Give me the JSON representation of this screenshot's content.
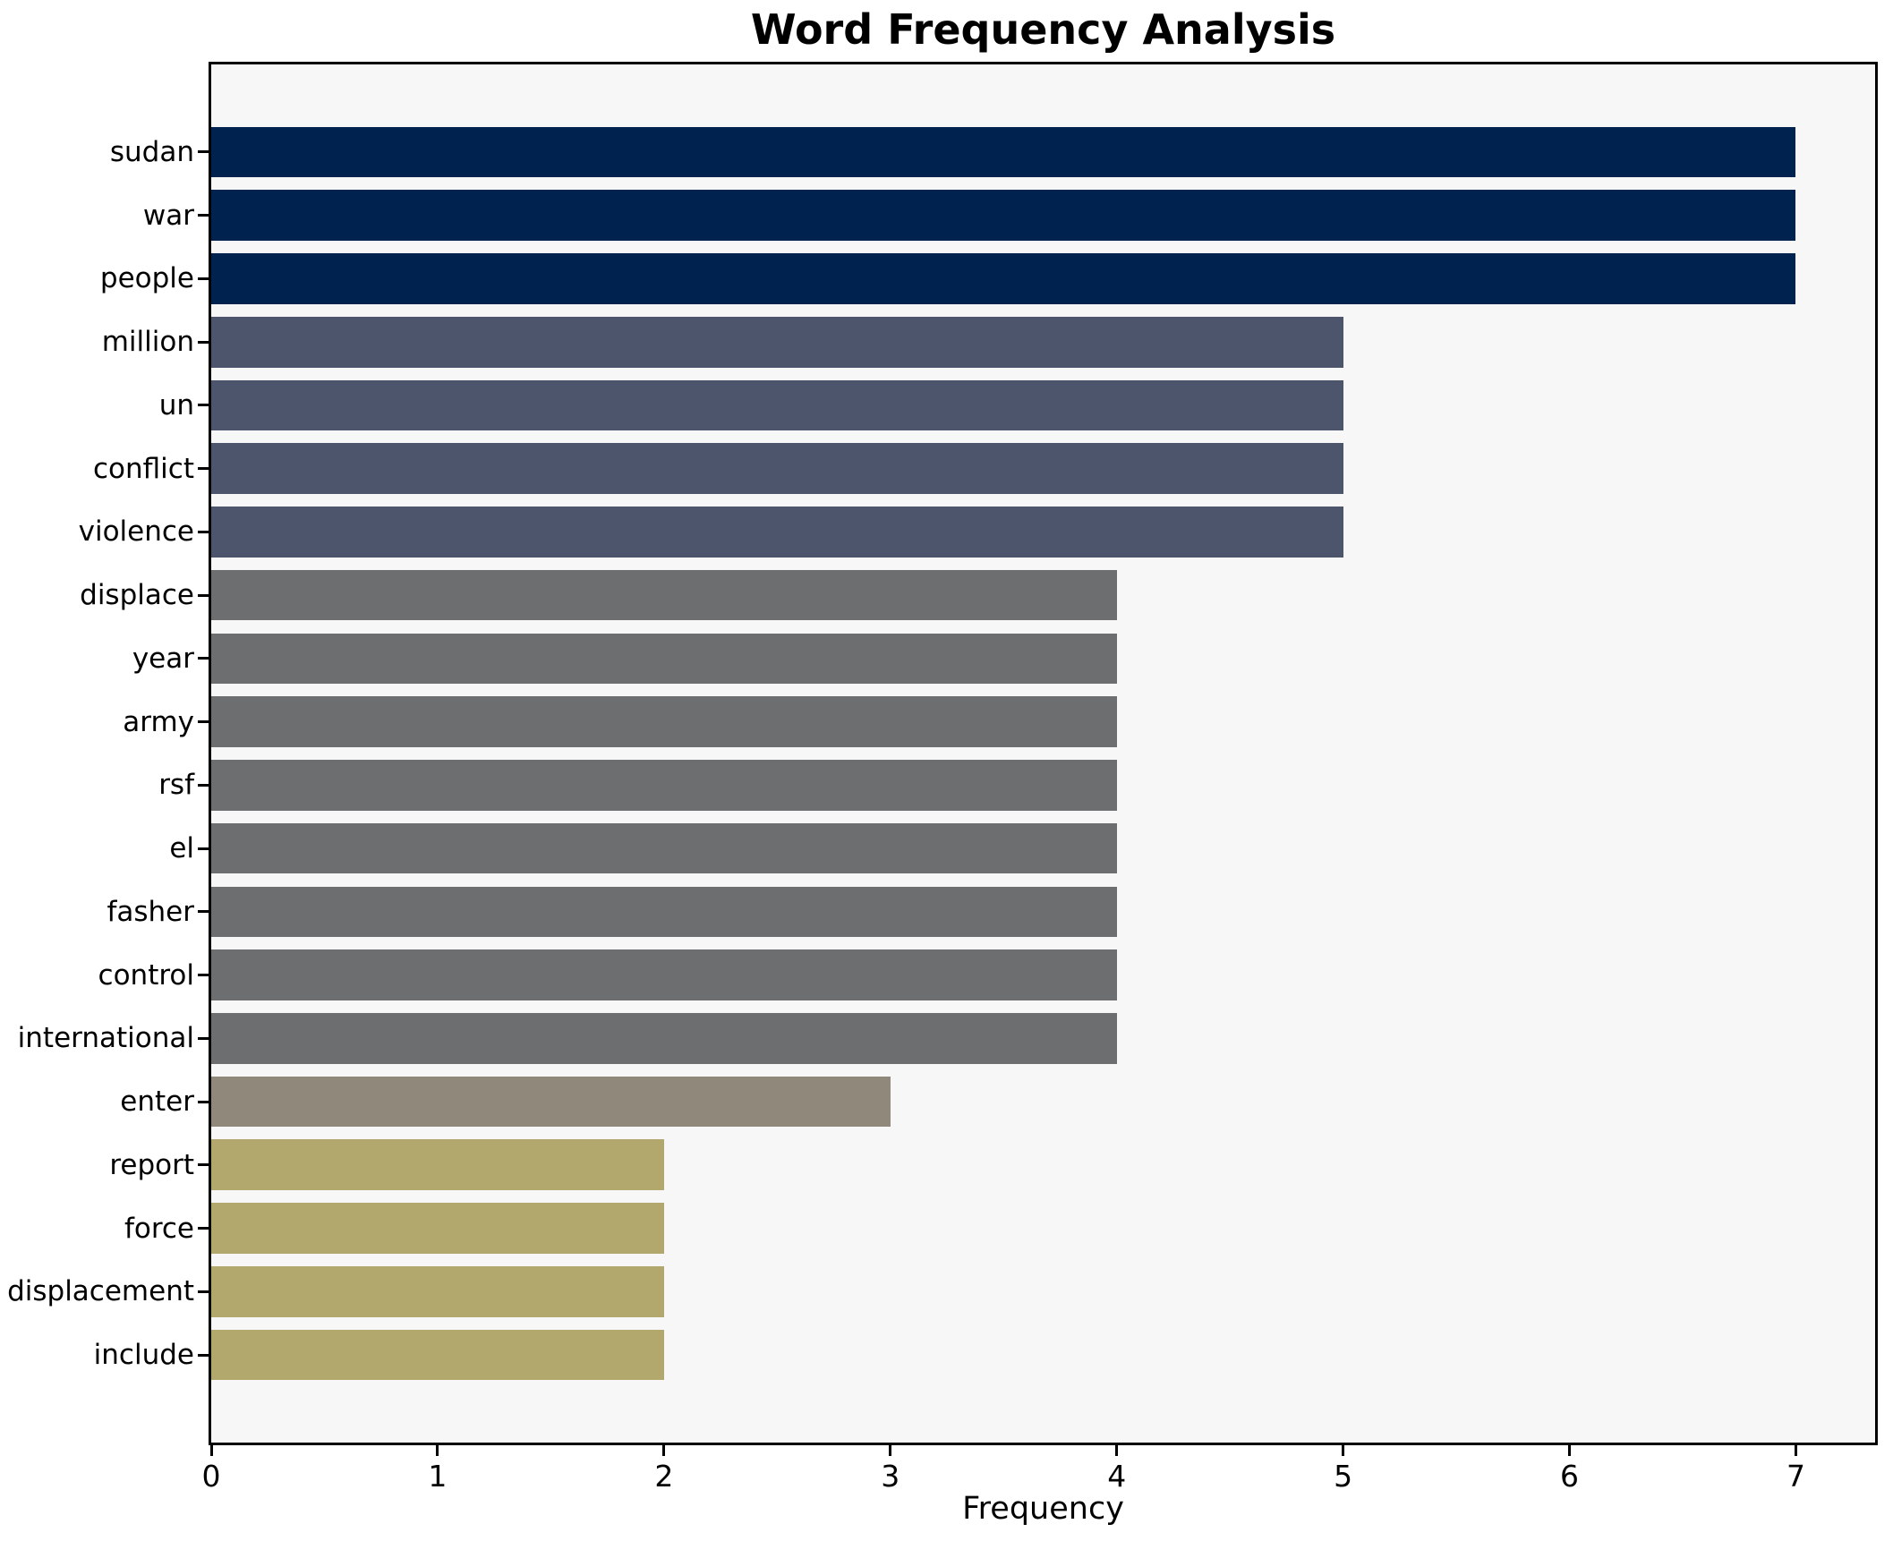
{
  "title": "Word Frequency Analysis",
  "chart_data": {
    "type": "bar",
    "orientation": "horizontal",
    "title": "Word Frequency Analysis",
    "xlabel": "Frequency",
    "ylabel": "",
    "categories": [
      "sudan",
      "war",
      "people",
      "million",
      "un",
      "conflict",
      "violence",
      "displace",
      "year",
      "army",
      "rsf",
      "el",
      "fasher",
      "control",
      "international",
      "enter",
      "report",
      "force",
      "displacement",
      "include"
    ],
    "values": [
      7,
      7,
      7,
      5,
      5,
      5,
      5,
      4,
      4,
      4,
      4,
      4,
      4,
      4,
      4,
      3,
      2,
      2,
      2,
      2
    ],
    "bar_colors": [
      "#00224e",
      "#00224e",
      "#00224e",
      "#4d556c",
      "#4d556c",
      "#4d556c",
      "#4d556c",
      "#6c6e70",
      "#6c6e70",
      "#6c6e70",
      "#6c6e70",
      "#6c6e70",
      "#6c6e70",
      "#6c6e70",
      "#6c6e70",
      "#90897b",
      "#b2a86e",
      "#b2a86e",
      "#b2a86e",
      "#b2a86e"
    ],
    "value_colors": {
      "7": "#00224e",
      "5": "#4d556c",
      "4": "#6c6e70",
      "3": "#90897b",
      "2": "#b2a86e"
    },
    "x_ticks": [
      0,
      1,
      2,
      3,
      4,
      5,
      6,
      7
    ],
    "xlim": [
      0,
      7.35
    ],
    "grid": false,
    "legend": "none",
    "plot_background": "#f7f7f7",
    "figure_background": "#ffffff",
    "spine_color": "#000000"
  }
}
